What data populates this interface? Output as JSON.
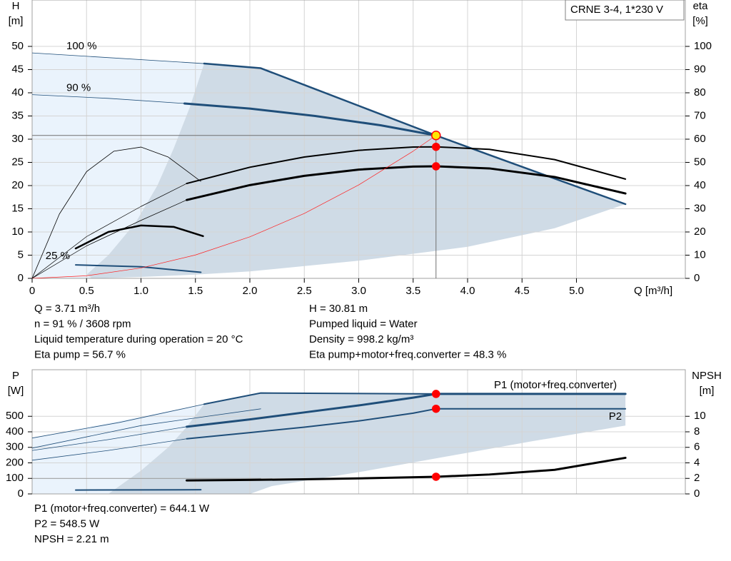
{
  "chart_data": [
    {
      "type": "line",
      "y_label": "H",
      "y_unit": "[m]",
      "y2_label": "eta",
      "y2_unit": "[%]",
      "x_label": "Q [m³/h]",
      "box_title": "CRNE 3-4, 1*230 V",
      "xlim": [
        0,
        6
      ],
      "ylim": [
        0,
        60
      ],
      "y2lim": [
        0,
        120
      ],
      "xticks": [
        0,
        0.5,
        {
          "value": 1,
          "label": "1.0"
        },
        1.5,
        {
          "value": 2,
          "label": "2.0"
        },
        2.5,
        {
          "value": 3,
          "label": "3.0"
        },
        3.5,
        {
          "value": 4,
          "label": "4.0"
        },
        4.5,
        {
          "value": 5,
          "label": "5.0"
        }
      ],
      "yticks": [
        0,
        5,
        10,
        15,
        20,
        25,
        30,
        35,
        40,
        45,
        50
      ],
      "y2ticks": [
        0,
        10,
        20,
        30,
        40,
        50,
        60,
        70,
        80,
        90,
        100
      ],
      "grid": true,
      "crosshair": true,
      "areas": [
        {
          "color": "#eaf3fc",
          "points": [
            [
              0,
              0
            ],
            [
              0,
              48.6
            ],
            [
              1.58,
              46.3
            ],
            [
              1.45,
              37
            ],
            [
              1.3,
              28
            ],
            [
              1.15,
              20
            ],
            [
              0.95,
              12
            ],
            [
              0.7,
              5
            ],
            [
              0.5,
              0.8
            ],
            [
              0.55,
              0
            ]
          ]
        },
        {
          "color": "#cfdbe6",
          "points": [
            [
              1.58,
              46.3
            ],
            [
              2.1,
              45.3
            ],
            [
              3.1,
              36.3
            ],
            [
              3.71,
              30.81
            ],
            [
              4.8,
              21.5
            ],
            [
              5.45,
              16
            ],
            [
              4.8,
              10.8
            ],
            [
              4.0,
              6.8
            ],
            [
              3.0,
              3.8
            ],
            [
              2.0,
              1.5
            ],
            [
              1.5,
              0.8
            ],
            [
              1.0,
              0.3
            ],
            [
              0.55,
              0
            ],
            [
              0.5,
              0.8
            ],
            [
              0.7,
              5
            ],
            [
              0.95,
              12
            ],
            [
              1.15,
              20
            ],
            [
              1.3,
              28
            ],
            [
              1.45,
              37
            ]
          ]
        }
      ],
      "series": [
        {
          "name": "100 %",
          "label": "start",
          "color": "#1f4e79",
          "width": 0.8,
          "x": [
            0,
            1.58
          ],
          "values": [
            48.6,
            46.3
          ]
        },
        {
          "color": "#1f4e79",
          "width": 2.5,
          "x": [
            1.58,
            2.1,
            2.6,
            3.1,
            3.71,
            4.2,
            4.8,
            5.45
          ],
          "values": [
            46.3,
            45.3,
            40.8,
            36.3,
            30.81,
            26.6,
            21.5,
            16
          ]
        },
        {
          "name": "90 %",
          "label": "start",
          "color": "#1f4e79",
          "width": 0.8,
          "x": [
            0,
            0.7,
            1.4
          ],
          "values": [
            39.6,
            38.8,
            37.7
          ]
        },
        {
          "color": "#1f4e79",
          "width": 3,
          "x": [
            1.4,
            2.0,
            2.6,
            3.2,
            3.71
          ],
          "values": [
            37.7,
            36.6,
            35.0,
            33.0,
            30.81
          ]
        },
        {
          "name": "25 %",
          "label": "start-left",
          "color": "#1f4e79",
          "width": 2,
          "x": [
            0.4,
            1.0,
            1.55
          ],
          "values": [
            2.9,
            2.5,
            1.3
          ]
        },
        {
          "axis": "y2",
          "color": "#000000",
          "width": 0.7,
          "x": [
            0,
            0.5,
            1.0,
            1.42
          ],
          "values": [
            0,
            18,
            31,
            40.9
          ]
        },
        {
          "axis": "y2",
          "color": "#000000",
          "width": 2,
          "x": [
            1.42,
            2.0,
            2.5,
            3.0,
            3.5,
            3.71,
            4.2,
            4.8,
            5.45
          ],
          "values": [
            40.9,
            47.9,
            52.3,
            55.2,
            56.6,
            56.7,
            55.6,
            51.2,
            42.8
          ]
        },
        {
          "axis": "y2",
          "color": "#000000",
          "width": 0.7,
          "x": [
            0,
            0.5,
            1.0,
            1.42
          ],
          "values": [
            0,
            14,
            25,
            33.8
          ]
        },
        {
          "axis": "y2",
          "color": "#000000",
          "width": 3,
          "x": [
            1.42,
            2.0,
            2.5,
            3.0,
            3.5,
            3.71,
            4.2,
            4.8,
            5.45
          ],
          "values": [
            33.8,
            40.2,
            44.2,
            46.9,
            48.2,
            48.3,
            47.4,
            43.7,
            36.6
          ]
        },
        {
          "axis": "y2",
          "color": "#000000",
          "width": 0.8,
          "x": [
            0,
            0.25,
            0.5,
            0.75,
            1.0,
            1.25,
            1.55
          ],
          "values": [
            0,
            27.7,
            46,
            54.8,
            56.6,
            52.3,
            41.8
          ]
        },
        {
          "axis": "y2",
          "color": "#000000",
          "width": 2.5,
          "x": [
            0.4,
            0.7,
            1.0,
            1.3,
            1.57
          ],
          "values": [
            12.9,
            20,
            22.8,
            22.2,
            18.2
          ]
        },
        {
          "color": "#ff2020",
          "width": 0.7,
          "x": [
            0,
            0.5,
            1,
            1.5,
            2,
            2.5,
            3,
            3.5,
            3.71
          ],
          "values": [
            0,
            0.56,
            2.24,
            5.04,
            8.95,
            13.99,
            20.14,
            27.42,
            30.81
          ]
        }
      ],
      "points": [
        {
          "x": 3.71,
          "y": 30.81,
          "color": "#ffe600"
        },
        {
          "x": 3.71,
          "y": 56.7,
          "axis": "y2",
          "color": "#ff0000"
        },
        {
          "x": 3.71,
          "y": 48.3,
          "axis": "y2",
          "color": "#ff0000"
        }
      ],
      "readouts": [
        "Q = 3.71 m³/h",
        "n = 91 % / 3608 rpm",
        "Liquid temperature during operation = 20 °C",
        "Eta pump = 56.7 %",
        "H = 30.81 m",
        "Pumped liquid = Water",
        "Density = 998.2 kg/m³",
        "Eta pump+motor+freq.converter = 48.3 %"
      ]
    },
    {
      "type": "line",
      "y_label": "P",
      "y_unit": "[W]",
      "y2_label": "NPSH",
      "y2_unit": "[m]",
      "xlim": [
        0,
        6
      ],
      "ylim": [
        0,
        800
      ],
      "y2lim": [
        0,
        16
      ],
      "yticks": [
        0,
        100,
        200,
        300,
        400,
        500
      ],
      "y2ticks": [
        0,
        2,
        4,
        6,
        8,
        10
      ],
      "grid": true,
      "areas": [
        {
          "color": "#eaf3fc",
          "points": [
            [
              0,
              0
            ],
            [
              0,
              360
            ],
            [
              1.58,
              578
            ],
            [
              1.41,
              424
            ],
            [
              1.25,
              300
            ],
            [
              1.0,
              150
            ],
            [
              0.7,
              0
            ]
          ]
        },
        {
          "color": "#cfdbe6",
          "points": [
            [
              1.58,
              578
            ],
            [
              2.1,
              650
            ],
            [
              3.71,
              644
            ],
            [
              5.45,
              644
            ],
            [
              5.45,
              440
            ],
            [
              4.6,
              340
            ],
            [
              3.8,
              240
            ],
            [
              3.0,
              140
            ],
            [
              2.2,
              50
            ],
            [
              2.0,
              0
            ],
            [
              0.7,
              0
            ],
            [
              1.0,
              150
            ],
            [
              1.25,
              300
            ],
            [
              1.41,
              424
            ]
          ]
        }
      ],
      "series": [
        {
          "color": "#1f4e79",
          "width": 0.8,
          "x": [
            0,
            0.8,
            1.58
          ],
          "values": [
            360,
            460,
            578
          ]
        },
        {
          "color": "#1f4e79",
          "width": 2,
          "x": [
            1.58,
            2.1,
            3.71,
            5.45
          ],
          "values": [
            578,
            650,
            644,
            644
          ]
        },
        {
          "color": "#1f4e79",
          "width": 0.8,
          "x": [
            0,
            0.7,
            1.42
          ],
          "values": [
            280,
            350,
            433
          ]
        },
        {
          "name": "P1 (motor+freq.converter)",
          "label": "end-above",
          "color": "#1f4e79",
          "width": 3,
          "x": [
            1.42,
            2.0,
            2.5,
            3.0,
            3.5,
            3.71,
            4.5,
            5.0,
            5.45
          ],
          "values": [
            433,
            480,
            525,
            570,
            620,
            644.1,
            644,
            644,
            644
          ]
        },
        {
          "color": "#1f4e79",
          "width": 0.8,
          "x": [
            0,
            0.7,
            1.42
          ],
          "values": [
            217,
            280,
            355
          ]
        },
        {
          "color": "#1f4e79",
          "width": 0.8,
          "x": [
            0,
            1.0,
            2.1
          ],
          "values": [
            295,
            440,
            548
          ]
        },
        {
          "name": "P2",
          "label": "end-below",
          "color": "#1f4e79",
          "width": 2,
          "x": [
            1.42,
            2.0,
            2.5,
            3.0,
            3.5,
            3.71,
            4.5,
            5.0,
            5.45
          ],
          "values": [
            355,
            395,
            430,
            470,
            520,
            548.5,
            548,
            548,
            548
          ]
        },
        {
          "color": "#1f4e79",
          "width": 2,
          "x": [
            0.4,
            1.55
          ],
          "values": [
            25,
            27
          ]
        },
        {
          "axis": "y2",
          "color": "#888888",
          "width": 0.8,
          "x": [
            0,
            1.58,
            2.1
          ],
          "values": [
            2.0,
            2.0,
            2.0
          ]
        },
        {
          "axis": "y2",
          "color": "#000000",
          "width": 3,
          "x": [
            1.42,
            2.0,
            2.5,
            3.0,
            3.71,
            4.2,
            4.8,
            5.45
          ],
          "values": [
            1.74,
            1.8,
            1.88,
            2.0,
            2.21,
            2.5,
            3.1,
            4.65
          ]
        }
      ],
      "points": [
        {
          "x": 3.71,
          "y": 644.1,
          "color": "#ff0000"
        },
        {
          "x": 3.71,
          "y": 548.5,
          "color": "#ff0000"
        },
        {
          "x": 3.71,
          "y": 2.21,
          "axis": "y2",
          "color": "#ff0000"
        }
      ],
      "readouts": [
        "P1 (motor+freq.converter) = 644.1 W",
        "P2 = 548.5 W",
        "NPSH = 2.21 m"
      ]
    }
  ]
}
